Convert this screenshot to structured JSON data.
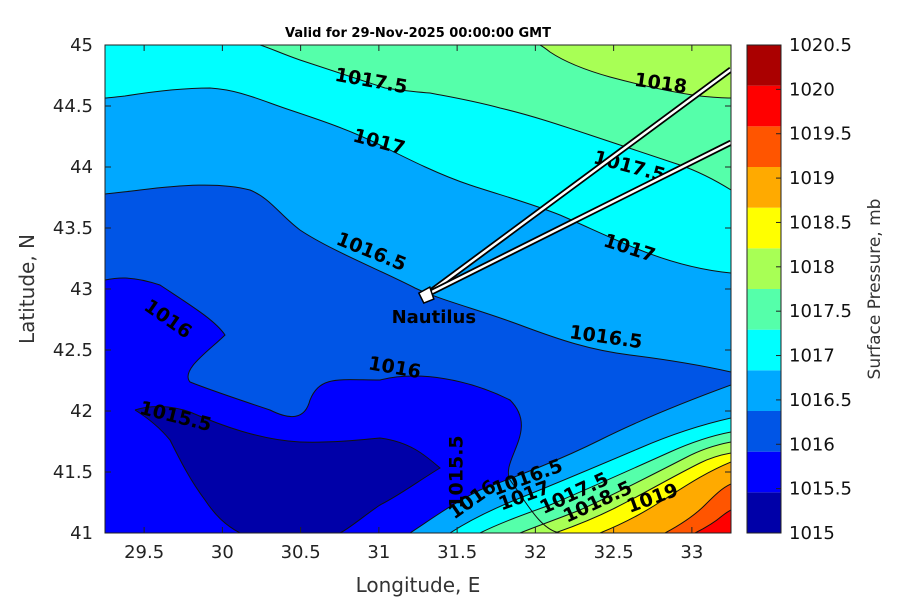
{
  "chart_data": {
    "type": "contour",
    "title": "Valid for 29-Nov-2025 00:00:00 GMT",
    "xlabel": "Longitude, E",
    "ylabel": "Latitude, N",
    "xlim": [
      29.25,
      33.25
    ],
    "ylim": [
      41,
      45
    ],
    "xticks": [
      "29.5",
      "30",
      "30.5",
      "31",
      "31.5",
      "32",
      "32.5",
      "33"
    ],
    "yticks": [
      "41",
      "41.5",
      "42",
      "42.5",
      "43",
      "43.5",
      "44",
      "44.5",
      "45"
    ],
    "colorbar": {
      "label": "Surface Pressure, mb",
      "levels": [
        "1015",
        "1015.5",
        "1016",
        "1016.5",
        "1017",
        "1017.5",
        "1018",
        "1018.5",
        "1019",
        "1019.5",
        "1020",
        "1020.5"
      ],
      "colors": [
        "#0000a8",
        "#0000ff",
        "#0055e6",
        "#00a8ff",
        "#00ffff",
        "#55ffaa",
        "#a8ff55",
        "#ffff00",
        "#ffaa00",
        "#ff5500",
        "#ff0000",
        "#aa0000"
      ]
    },
    "contour_labels": [
      {
        "text": "1017.5",
        "lon": 30.95,
        "lat": 44.7
      },
      {
        "text": "1018",
        "lon": 32.8,
        "lat": 44.68
      },
      {
        "text": "1017",
        "lon": 31.0,
        "lat": 44.2
      },
      {
        "text": "1017.5",
        "lon": 32.6,
        "lat": 44.0
      },
      {
        "text": "1016.5",
        "lon": 30.95,
        "lat": 43.3
      },
      {
        "text": "1017",
        "lon": 32.6,
        "lat": 43.33
      },
      {
        "text": "1016",
        "lon": 29.65,
        "lat": 42.75
      },
      {
        "text": "1016",
        "lon": 31.1,
        "lat": 42.35
      },
      {
        "text": "1016.5",
        "lon": 32.45,
        "lat": 42.6
      },
      {
        "text": "1015.5",
        "lon": 29.7,
        "lat": 41.95
      },
      {
        "text": "1015.5",
        "lon": 31.5,
        "lat": 41.5
      },
      {
        "text": "1016",
        "lon": 31.6,
        "lat": 41.27
      },
      {
        "text": "1016.5",
        "lon": 31.95,
        "lat": 41.45
      },
      {
        "text": "1017",
        "lon": 31.93,
        "lat": 41.3
      },
      {
        "text": "1017.5",
        "lon": 32.25,
        "lat": 41.32
      },
      {
        "text": "1018.5",
        "lon": 32.4,
        "lat": 41.25
      },
      {
        "text": "1019",
        "lon": 32.75,
        "lat": 41.28
      }
    ],
    "marker": {
      "name": "Nautilus",
      "lon": 31.3,
      "lat": 42.95,
      "track_end_1": {
        "lon": 33.25,
        "lat": 44.8
      },
      "track_end_2": {
        "lon": 33.25,
        "lat": 44.2
      }
    }
  }
}
